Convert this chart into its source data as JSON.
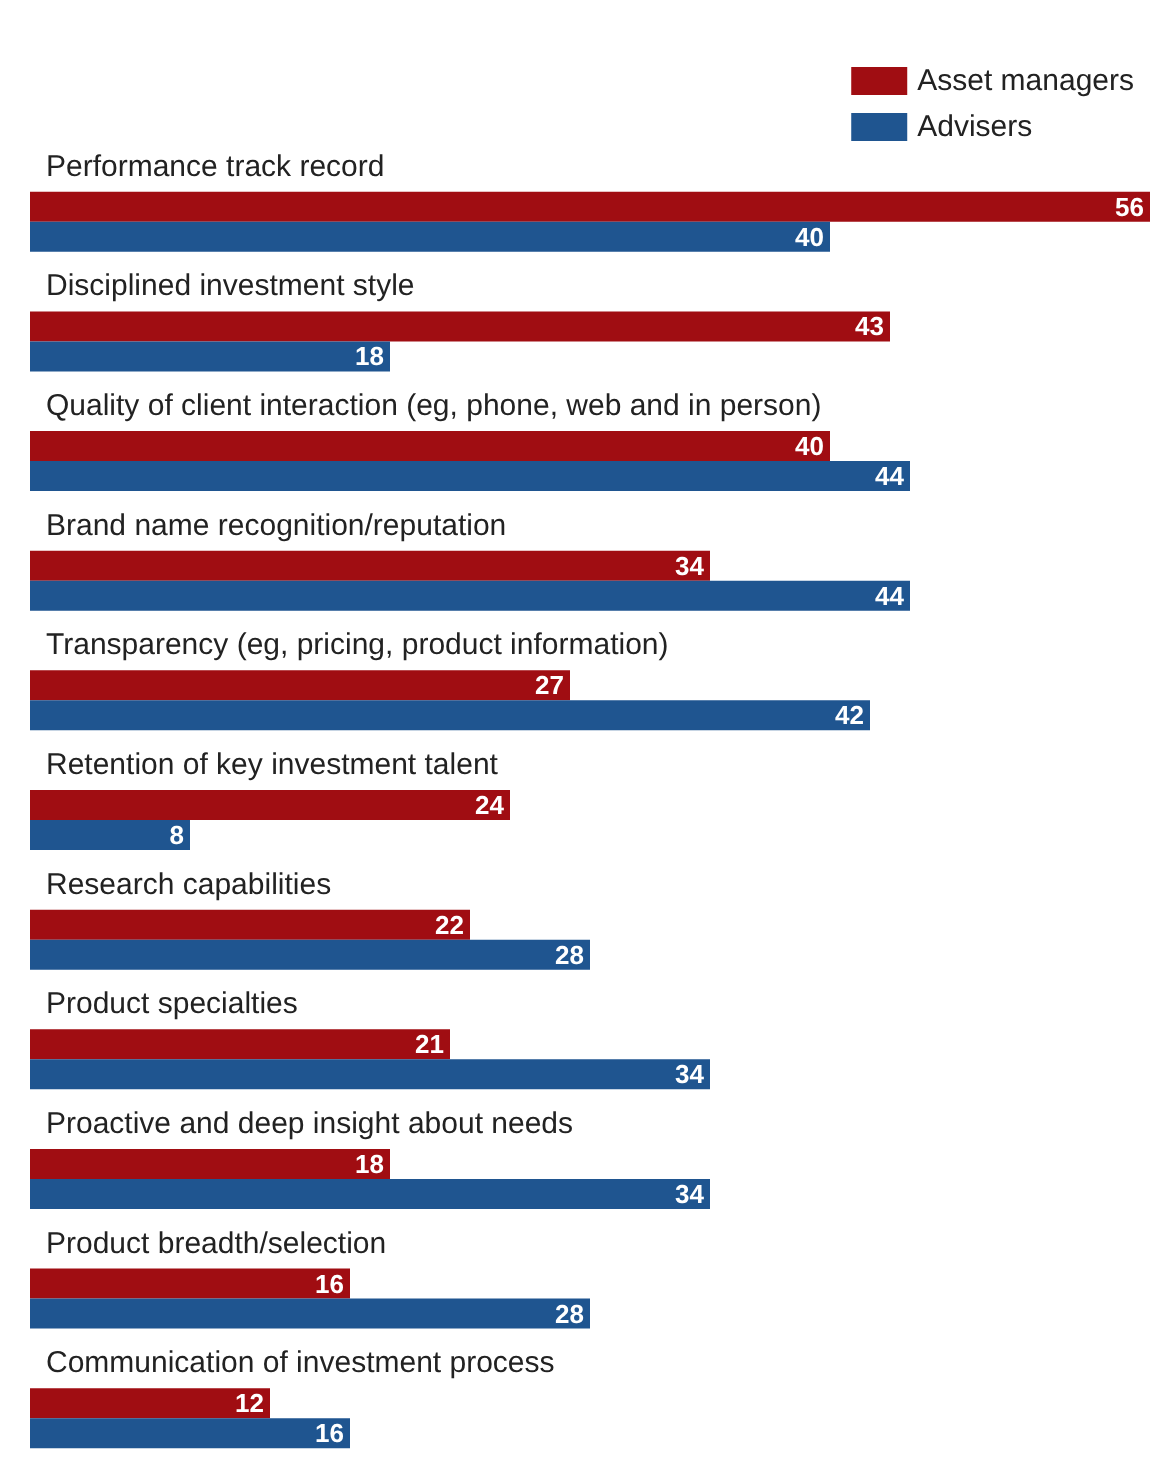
{
  "chart_data": {
    "type": "bar",
    "orientation": "horizontal",
    "categories": [
      "Performance track record",
      "Disciplined investment style",
      "Quality of client interaction (eg, phone, web and in person)",
      "Brand name recognition/reputation",
      "Transparency (eg, pricing, product information)",
      "Retention of key investment talent",
      "Research capabilities",
      "Product specialties",
      "Proactive and deep insight about needs",
      "Product breadth/selection",
      "Communication of investment process"
    ],
    "series": [
      {
        "name": "Asset managers",
        "color": "#a00d12",
        "values": [
          56,
          43,
          40,
          34,
          27,
          24,
          22,
          21,
          18,
          16,
          12
        ]
      },
      {
        "name": "Advisers",
        "color": "#1f5590",
        "values": [
          40,
          18,
          44,
          44,
          42,
          8,
          28,
          34,
          34,
          28,
          16
        ]
      }
    ],
    "xlim": [
      0,
      56
    ],
    "data_labels": true,
    "legend": "top right",
    "grid": false
  }
}
